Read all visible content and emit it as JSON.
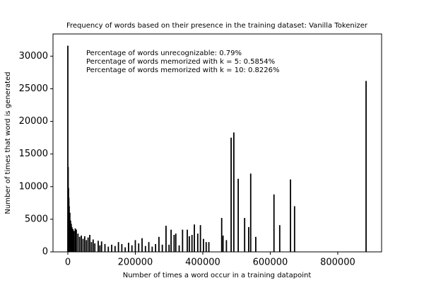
{
  "chart_data": {
    "type": "bar",
    "title": "Frequency of words based on their presence in the training dataset: Vanilla Tokenizer",
    "x_label": "Number of times a word occur in a training datapoint",
    "y_label": "Number of times that word is generated",
    "annotations": [
      "Percentage of words unrecognizable: 0.79%",
      "Percentage of words memorized with k = 5: 0.5854%",
      "Percentage of words memorized with k = 10: 0.8226%"
    ],
    "color": "#000000",
    "x": [
      0,
      1000,
      2000,
      3000,
      4000,
      5000,
      6000,
      8000,
      10000,
      12000,
      15000,
      18000,
      22000,
      25000,
      30000,
      35000,
      40000,
      45000,
      50000,
      55000,
      60000,
      65000,
      70000,
      75000,
      80000,
      90000,
      95000,
      100000,
      110000,
      120000,
      130000,
      140000,
      150000,
      160000,
      170000,
      180000,
      190000,
      200000,
      210000,
      220000,
      230000,
      240000,
      250000,
      260000,
      270000,
      280000,
      291000,
      300000,
      306000,
      315000,
      320000,
      330000,
      340000,
      354000,
      360000,
      368000,
      375000,
      385000,
      393000,
      402000,
      410000,
      418000,
      456000,
      460000,
      470000,
      484000,
      492000,
      505000,
      524000,
      536000,
      542000,
      557000,
      611000,
      628000,
      660000,
      672000,
      884000
    ],
    "values": [
      31600,
      13000,
      9800,
      8300,
      7000,
      5200,
      6000,
      4800,
      4300,
      3800,
      3500,
      3200,
      3600,
      3400,
      2800,
      2300,
      2500,
      2000,
      2400,
      1800,
      2200,
      2600,
      1500,
      1900,
      1300,
      1700,
      1000,
      1600,
      1200,
      800,
      1100,
      900,
      1500,
      1200,
      700,
      1400,
      1000,
      1800,
      1300,
      2100,
      900,
      1500,
      800,
      1200,
      2300,
      1100,
      4000,
      1100,
      3400,
      2600,
      2800,
      1000,
      3400,
      3400,
      2400,
      2600,
      4200,
      2800,
      4100,
      2000,
      1500,
      1500,
      5200,
      2500,
      1800,
      17500,
      18300,
      11200,
      5200,
      3800,
      12000,
      2300,
      8800,
      4100,
      11100,
      7000,
      26200
    ],
    "xlim": [
      -44000,
      930000
    ],
    "ylim": [
      0,
      33400
    ],
    "xticks": [
      0,
      200000,
      400000,
      600000,
      800000
    ],
    "yticks": [
      0,
      5000,
      10000,
      15000,
      20000,
      25000,
      30000
    ],
    "grid": false
  }
}
